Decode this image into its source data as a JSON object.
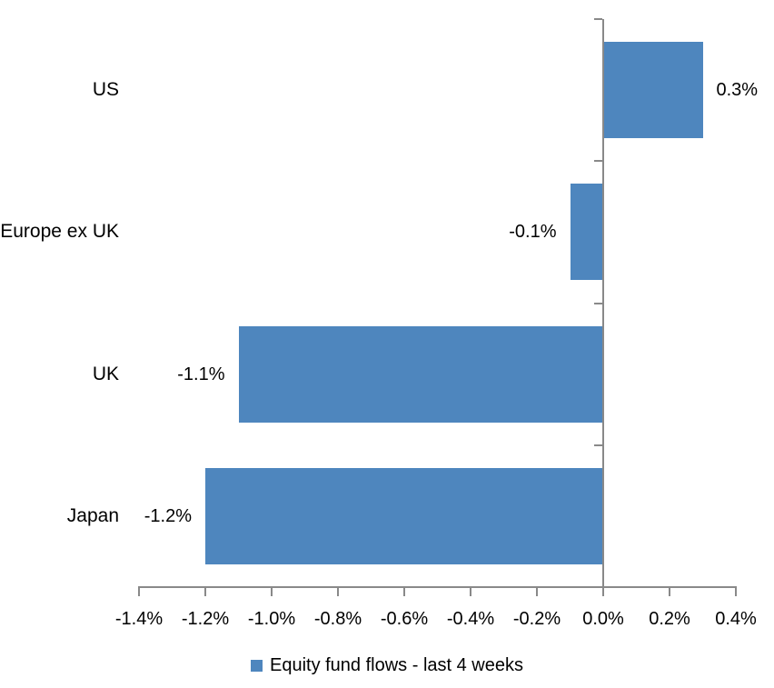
{
  "chart_data": {
    "type": "bar",
    "orientation": "horizontal",
    "title": "",
    "xlabel": "",
    "ylabel": "",
    "categories": [
      "US",
      "Europe ex UK",
      "UK",
      "Japan"
    ],
    "values": [
      0.3,
      -0.1,
      -1.1,
      -1.2
    ],
    "data_labels": [
      "0.3%",
      "-0.1%",
      "-1.1%",
      "-1.2%"
    ],
    "xlim": [
      -1.4,
      0.4
    ],
    "x_ticks": [
      -1.4,
      -1.2,
      -1.0,
      -0.8,
      -0.6,
      -0.4,
      -0.2,
      0.0,
      0.2,
      0.4
    ],
    "x_tick_labels": [
      "-1.4%",
      "-1.2%",
      "-1.0%",
      "-0.8%",
      "-0.6%",
      "-0.4%",
      "-0.2%",
      "0.0%",
      "0.2%",
      "0.4%"
    ],
    "grid": false,
    "legend": {
      "label": "Equity fund flows - last 4 weeks",
      "position": "bottom"
    },
    "colors": {
      "bar": "#4E86BE",
      "axis": "#898989",
      "text": "#000000",
      "background": "#FFFFFF"
    }
  }
}
